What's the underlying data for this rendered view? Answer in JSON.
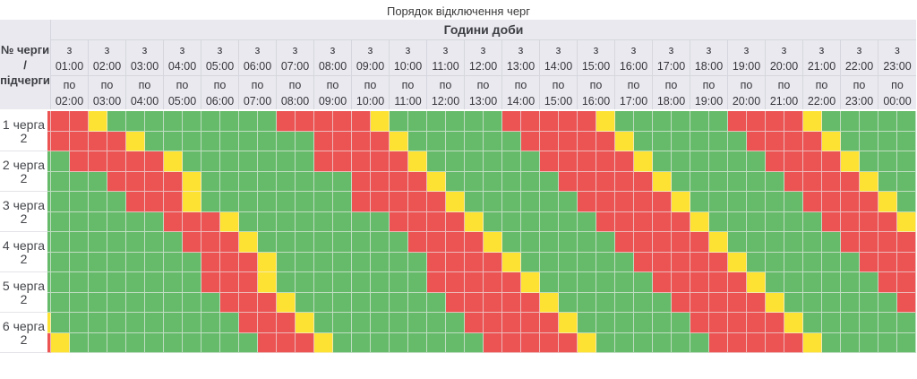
{
  "title": "Порядок відключення черг",
  "header": {
    "corner_lines": [
      "№ черги",
      "/",
      "підчерги"
    ],
    "day_hours_label": "Години доби",
    "from_prefix": "з",
    "to_prefix": "по",
    "columns": [
      {
        "from": "01:00",
        "to": "02:00"
      },
      {
        "from": "02:00",
        "to": "03:00"
      },
      {
        "from": "03:00",
        "to": "04:00"
      },
      {
        "from": "04:00",
        "to": "05:00"
      },
      {
        "from": "05:00",
        "to": "06:00"
      },
      {
        "from": "06:00",
        "to": "07:00"
      },
      {
        "from": "07:00",
        "to": "08:00"
      },
      {
        "from": "08:00",
        "to": "09:00"
      },
      {
        "from": "09:00",
        "to": "10:00"
      },
      {
        "from": "10:00",
        "to": "11:00"
      },
      {
        "from": "11:00",
        "to": "12:00"
      },
      {
        "from": "12:00",
        "to": "13:00"
      },
      {
        "from": "13:00",
        "to": "14:00"
      },
      {
        "from": "14:00",
        "to": "15:00"
      },
      {
        "from": "15:00",
        "to": "16:00"
      },
      {
        "from": "16:00",
        "to": "17:00"
      },
      {
        "from": "17:00",
        "to": "18:00"
      },
      {
        "from": "18:00",
        "to": "19:00"
      },
      {
        "from": "19:00",
        "to": "20:00"
      },
      {
        "from": "20:00",
        "to": "21:00"
      },
      {
        "from": "21:00",
        "to": "22:00"
      },
      {
        "from": "22:00",
        "to": "23:00"
      },
      {
        "from": "23:00",
        "to": "00:00"
      }
    ]
  },
  "colors": {
    "on_green": "#66bb6a",
    "off_red": "#ec5353",
    "transition_yellow": "#fee233",
    "header_bg": "#e9e9ef"
  },
  "chart_data": {
    "type": "heatmap",
    "title": "Порядок відключення черг",
    "x_axis_label": "Години доби",
    "x_resolution": "half-hour cells; each labeled hour column contains 2 cells; first narrow cell is the clipped half-hour before 01:00",
    "cell_codes": {
      "G": "#66bb6a",
      "R": "#ec5353",
      "Y": "#fee233"
    },
    "groups": [
      {
        "label": "1 черга",
        "sub": "2",
        "rows": [
          "RRRYGGGGGGGGGRRRRRYGGGGGGRRRRRYGGGGGGRRRRYGGGGG",
          "RRRRRYGGGGGGGGGRRRRYGGGGGGRRRRRYGGGGGGRRRRYGGGG"
        ]
      },
      {
        "label": "2 черга",
        "sub": "2",
        "rows": [
          "GGRRRRRYGGGGGGGRRRRRYGGGGGGRRRRRYGGGGGGRRRRYGGG",
          "GGGGRRRRYGGGGGGGGRRRRYGGGGGGRRRRRYGGGGGGRRRRYGG"
        ]
      },
      {
        "label": "3 черга",
        "sub": "2",
        "rows": [
          "GGGGGRRRYGGGGGGGGRRRRRYGGGGGGRRRRRYGGGGGGRRRRYG",
          "GGGGGGGRRRYGGGGGGGGRRRRYGGGGGGRRRRRYGGGGGGRRRRY"
        ]
      },
      {
        "label": "4 черга",
        "sub": "2",
        "rows": [
          "GGGGGGGGRRRYGGGGGGGGRRRRYGGGGGGRRRRRYGGGGGGRRRR",
          "GGGGGGGGGRRRYGGGGGGGGRRRRYGGGGGGRRRRRYGGGGGGRRR"
        ]
      },
      {
        "label": "5 черга",
        "sub": "2",
        "rows": [
          "GGGGGGGGGRRRYGGGGGGGGRRRRRYGGGGGGRRRRRYGGGGGGRR",
          "GGGGGGGGGGRRRYGGGGGGGGRRRRRYGGGGGGRRRRRYGGGGGGR"
        ]
      },
      {
        "label": "6 черга",
        "sub": "2",
        "rows": [
          "YGGGGGGGGGGRRRYGGGGGGGGRRRRRYGGGGGGRRRRRYGGGGGG",
          "RYGGGGGGGGGGRRRYGGGGGGGGRRRRRYGGGGGGRRRRRYGGGGG"
        ]
      }
    ]
  }
}
